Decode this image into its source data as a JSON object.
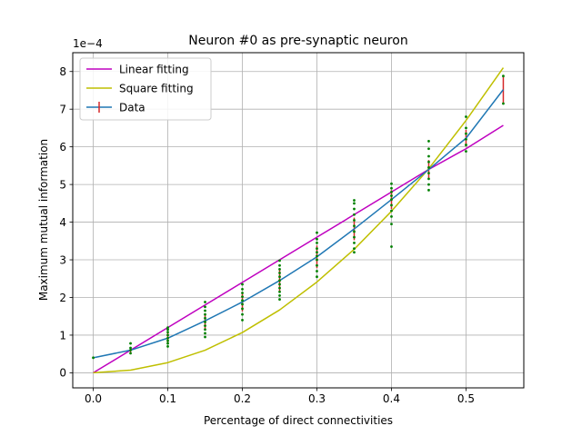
{
  "chart_data": {
    "type": "line",
    "title": "Neuron #0 as pre-synaptic neuron",
    "xlabel": "Percentage of direct connectivities",
    "ylabel": "Maximum mutual information",
    "y_scale_label": "1e−4",
    "xlim": [
      -0.0275,
      0.5775
    ],
    "ylim": [
      -0.4,
      8.5
    ],
    "xticks": [
      0.0,
      0.1,
      0.2,
      0.3,
      0.4,
      0.5
    ],
    "xtick_labels": [
      "0.0",
      "0.1",
      "0.2",
      "0.3",
      "0.4",
      "0.5"
    ],
    "yticks": [
      0,
      1,
      2,
      3,
      4,
      5,
      6,
      7,
      8
    ],
    "ytick_labels": [
      "0",
      "1",
      "2",
      "3",
      "4",
      "5",
      "6",
      "7",
      "8"
    ],
    "grid": true,
    "legend_position": "top-left",
    "legend": [
      "Linear fitting",
      "Square fitting",
      "Data"
    ],
    "x": [
      0.0,
      0.05,
      0.1,
      0.15,
      0.2,
      0.25,
      0.3,
      0.35,
      0.4,
      0.45,
      0.5,
      0.55
    ],
    "series": [
      {
        "name": "Linear fitting",
        "color": "#bf00bf",
        "kind": "line",
        "values": [
          0.0,
          0.6,
          1.2,
          1.8,
          2.4,
          3.0,
          3.6,
          4.2,
          4.8,
          5.4,
          5.95,
          6.57
        ]
      },
      {
        "name": "Square fitting",
        "color": "#bfbf00",
        "kind": "line",
        "values": [
          0.0,
          0.07,
          0.27,
          0.6,
          1.07,
          1.67,
          2.41,
          3.28,
          4.29,
          5.42,
          6.7,
          8.1
        ]
      },
      {
        "name": "Data",
        "color": "#1f77b4",
        "kind": "errorbar-line",
        "errorbar_color": "#d62728",
        "values": [
          0.4,
          0.6,
          0.92,
          1.38,
          1.88,
          2.45,
          3.08,
          3.82,
          4.6,
          5.4,
          6.23,
          7.52
        ],
        "error": [
          0.0,
          0.05,
          0.15,
          0.2,
          0.25,
          0.3,
          0.3,
          0.3,
          0.25,
          0.25,
          0.22,
          0.38
        ]
      }
    ],
    "samples": {
      "color": "#008000",
      "points": [
        [
          0.0,
          0.4
        ],
        [
          0.05,
          0.52
        ],
        [
          0.05,
          0.6
        ],
        [
          0.05,
          0.66
        ],
        [
          0.05,
          0.78
        ],
        [
          0.1,
          0.7
        ],
        [
          0.1,
          0.78
        ],
        [
          0.1,
          0.85
        ],
        [
          0.1,
          0.92
        ],
        [
          0.1,
          1.0
        ],
        [
          0.1,
          1.08
        ],
        [
          0.1,
          1.15
        ],
        [
          0.1,
          1.2
        ],
        [
          0.15,
          0.95
        ],
        [
          0.15,
          1.05
        ],
        [
          0.15,
          1.15
        ],
        [
          0.15,
          1.25
        ],
        [
          0.15,
          1.35
        ],
        [
          0.15,
          1.45
        ],
        [
          0.15,
          1.55
        ],
        [
          0.15,
          1.65
        ],
        [
          0.15,
          1.75
        ],
        [
          0.15,
          1.88
        ],
        [
          0.2,
          1.4
        ],
        [
          0.2,
          1.55
        ],
        [
          0.2,
          1.7
        ],
        [
          0.2,
          1.82
        ],
        [
          0.2,
          1.92
        ],
        [
          0.2,
          2.02
        ],
        [
          0.2,
          2.12
        ],
        [
          0.2,
          2.22
        ],
        [
          0.2,
          2.35
        ],
        [
          0.25,
          1.95
        ],
        [
          0.25,
          2.05
        ],
        [
          0.25,
          2.15
        ],
        [
          0.25,
          2.25
        ],
        [
          0.25,
          2.35
        ],
        [
          0.25,
          2.45
        ],
        [
          0.25,
          2.55
        ],
        [
          0.25,
          2.65
        ],
        [
          0.25,
          2.75
        ],
        [
          0.25,
          2.85
        ],
        [
          0.25,
          2.98
        ],
        [
          0.3,
          2.55
        ],
        [
          0.3,
          2.7
        ],
        [
          0.3,
          2.85
        ],
        [
          0.3,
          3.0
        ],
        [
          0.3,
          3.1
        ],
        [
          0.3,
          3.2
        ],
        [
          0.3,
          3.3
        ],
        [
          0.3,
          3.45
        ],
        [
          0.3,
          3.55
        ],
        [
          0.3,
          3.72
        ],
        [
          0.35,
          3.2
        ],
        [
          0.35,
          3.3
        ],
        [
          0.35,
          3.45
        ],
        [
          0.35,
          3.6
        ],
        [
          0.35,
          3.75
        ],
        [
          0.35,
          3.9
        ],
        [
          0.35,
          4.05
        ],
        [
          0.35,
          4.2
        ],
        [
          0.35,
          4.35
        ],
        [
          0.35,
          4.5
        ],
        [
          0.35,
          4.58
        ],
        [
          0.4,
          3.35
        ],
        [
          0.4,
          3.95
        ],
        [
          0.4,
          4.15
        ],
        [
          0.4,
          4.3
        ],
        [
          0.4,
          4.45
        ],
        [
          0.4,
          4.6
        ],
        [
          0.4,
          4.7
        ],
        [
          0.4,
          4.8
        ],
        [
          0.4,
          4.9
        ],
        [
          0.4,
          5.02
        ],
        [
          0.45,
          4.85
        ],
        [
          0.45,
          5.0
        ],
        [
          0.45,
          5.15
        ],
        [
          0.45,
          5.3
        ],
        [
          0.45,
          5.45
        ],
        [
          0.45,
          5.6
        ],
        [
          0.45,
          5.75
        ],
        [
          0.45,
          5.95
        ],
        [
          0.45,
          6.15
        ],
        [
          0.5,
          5.88
        ],
        [
          0.5,
          6.05
        ],
        [
          0.5,
          6.2
        ],
        [
          0.5,
          6.35
        ],
        [
          0.5,
          6.5
        ],
        [
          0.5,
          6.8
        ],
        [
          0.55,
          7.15
        ],
        [
          0.55,
          7.88
        ]
      ]
    }
  }
}
